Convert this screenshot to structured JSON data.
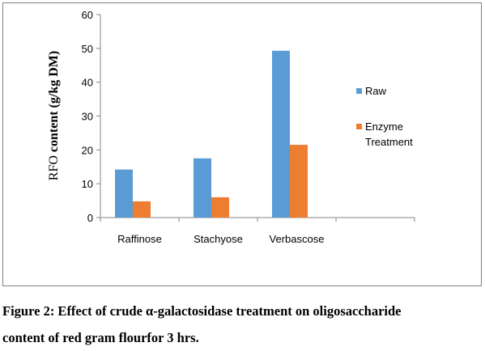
{
  "chart_data": {
    "type": "bar",
    "categories": [
      "Raffinose",
      "Stachyose",
      "Verbascose",
      ""
    ],
    "series": [
      {
        "name": "Raw",
        "values": [
          14.2,
          17.5,
          49.3,
          null
        ],
        "color": "#5B9BD5"
      },
      {
        "name": "Enzyme Treatment",
        "values": [
          4.8,
          6.0,
          21.5,
          null
        ],
        "color": "#ED7D31"
      }
    ],
    "ylabel": "RFO content (g/kg DM)",
    "ylim": [
      0,
      60
    ],
    "yticks": [
      0,
      10,
      20,
      30,
      40,
      50,
      60
    ],
    "grid": false,
    "legend": "right"
  },
  "legend": {
    "raw_label": "Raw",
    "enzyme_label_line1": "Enzyme",
    "enzyme_label_line2": "Treatment"
  },
  "caption": {
    "line1": "Figure 2: Effect of crude α-galactosidase treatment on oligosaccharide",
    "line2": "content of red gram flourfor 3 hrs."
  }
}
